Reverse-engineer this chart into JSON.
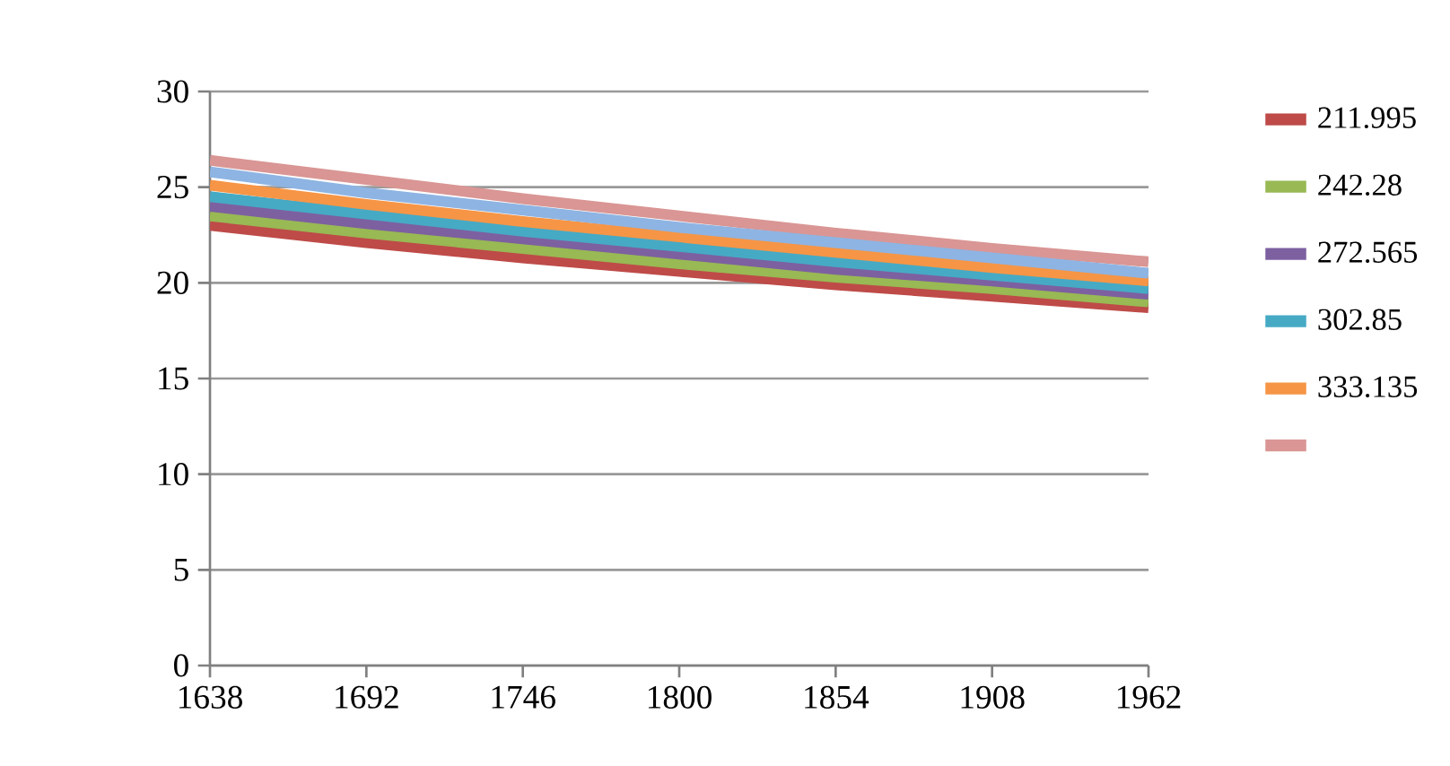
{
  "chart_data": {
    "type": "line",
    "categories": [
      "1638",
      "1692",
      "1746",
      "1800",
      "1854",
      "1908",
      "1962"
    ],
    "series": [
      {
        "name": "211.995",
        "color": "#be4b48",
        "values": [
          23.0,
          22.1,
          21.3,
          20.6,
          19.9,
          19.3,
          18.7
        ]
      },
      {
        "name": "242.28",
        "color": "#98b954",
        "values": [
          23.5,
          22.6,
          21.8,
          21.0,
          20.3,
          19.7,
          19.0
        ]
      },
      {
        "name": "272.565",
        "color": "#7d60a0",
        "values": [
          24.0,
          23.1,
          22.3,
          21.5,
          20.7,
          20.1,
          19.4
        ]
      },
      {
        "name": "302.85",
        "color": "#46aac5",
        "values": [
          24.5,
          23.6,
          22.7,
          21.9,
          21.1,
          20.4,
          19.7
        ]
      },
      {
        "name": "333.135",
        "color": "#f69546",
        "values": [
          25.1,
          24.1,
          23.2,
          22.4,
          21.6,
          20.8,
          20.1
        ]
      },
      {
        "color": "#d99694",
        "values": [
          26.4,
          25.4,
          24.4,
          23.5,
          22.6,
          21.8,
          21.1
        ]
      },
      {
        "color": "#8eb4e3",
        "values": [
          25.8,
          24.7,
          23.8,
          22.9,
          22.1,
          21.3,
          20.5
        ]
      }
    ],
    "ylim": [
      0,
      30
    ],
    "yticks": [
      0,
      5,
      10,
      15,
      20,
      25,
      30
    ],
    "grid": "y",
    "legend": "right",
    "marker": "none",
    "line_style": "solid"
  }
}
